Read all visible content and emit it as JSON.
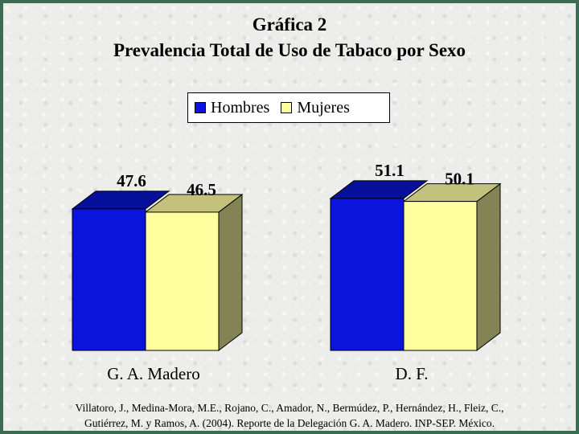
{
  "chart_data": {
    "type": "bar",
    "title": "Gráfica 2",
    "subtitle": "Prevalencia Total de Uso de Tabaco por Sexo",
    "categories": [
      "G. A. Madero",
      "D. F."
    ],
    "series": [
      {
        "name": "Hombres",
        "values": [
          47.6,
          51.1
        ]
      },
      {
        "name": "Mujeres",
        "values": [
          46.5,
          50.1
        ]
      }
    ],
    "value_labels": [
      [
        "47.6",
        "46.5"
      ],
      [
        "51.1",
        "50.1"
      ]
    ],
    "legend_position": "top-center",
    "three_d": true,
    "grid": false,
    "colors": {
      "Hombres": "#0a14dc",
      "Hombres_top": "#06109a",
      "Mujeres": "#ffffa0",
      "Mujeres_top": "#c2c27c",
      "Mujeres_side": "#838356"
    }
  },
  "source": {
    "line1": "Villatoro, J., Medina-Mora, M.E., Rojano, C., Amador, N., Bermúdez, P., Hernández, H., Fleiz, C.,",
    "line2": "Gutiérrez, M. y Ramos, A. (2004). Reporte de la Delegación G. A. Madero. INP-SEP. México."
  }
}
